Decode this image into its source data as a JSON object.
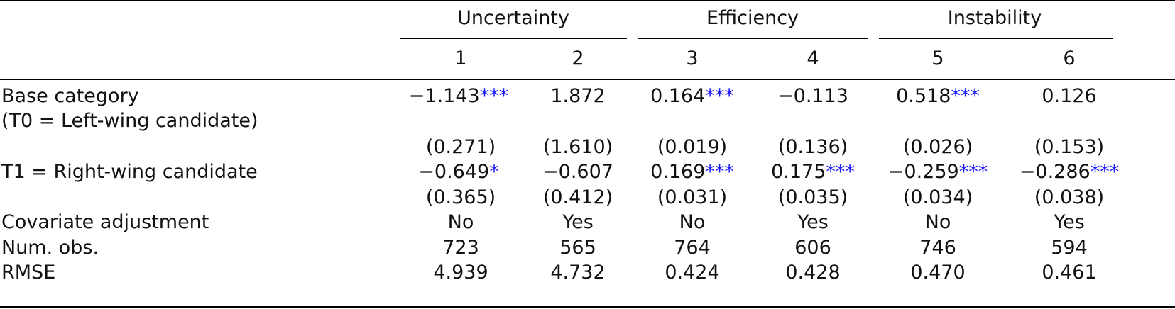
{
  "groups": [
    "Uncertainty",
    "Efficiency",
    "Instability"
  ],
  "column_numbers": [
    "1",
    "2",
    "3",
    "4",
    "5",
    "6"
  ],
  "rows": [
    {
      "label_lines": [
        "Base category",
        "(T0 = Left-wing candidate)"
      ],
      "estimates": [
        {
          "v": "−1.143",
          "s": "***"
        },
        {
          "v": "1.872",
          "s": ""
        },
        {
          "v": "0.164",
          "s": "***"
        },
        {
          "v": "−0.113",
          "s": ""
        },
        {
          "v": "0.518",
          "s": "***"
        },
        {
          "v": "0.126",
          "s": ""
        }
      ],
      "se": [
        "(0.271)",
        "(1.610)",
        "(0.019)",
        "(0.136)",
        "(0.026)",
        "(0.153)"
      ]
    },
    {
      "label_lines": [
        "T1 = Right-wing candidate"
      ],
      "estimates": [
        {
          "v": "−0.649",
          "s": "*"
        },
        {
          "v": "−0.607",
          "s": ""
        },
        {
          "v": "0.169",
          "s": "***"
        },
        {
          "v": "0.175",
          "s": "***"
        },
        {
          "v": "−0.259",
          "s": "***"
        },
        {
          "v": "−0.286",
          "s": "***"
        }
      ],
      "se": [
        "(0.365)",
        "(0.412)",
        "(0.031)",
        "(0.035)",
        "(0.034)",
        "(0.038)"
      ]
    }
  ],
  "stats": [
    {
      "label": "Covariate adjustment",
      "values": [
        "No",
        "Yes",
        "No",
        "Yes",
        "No",
        "Yes"
      ]
    },
    {
      "label": "Num. obs.",
      "values": [
        "723",
        "565",
        "764",
        "606",
        "746",
        "594"
      ]
    },
    {
      "label": "RMSE",
      "values": [
        "4.939",
        "4.732",
        "0.424",
        "0.428",
        "0.470",
        "0.461"
      ]
    }
  ],
  "colors": {
    "stars": "#1a1aff",
    "text": "#111111"
  }
}
